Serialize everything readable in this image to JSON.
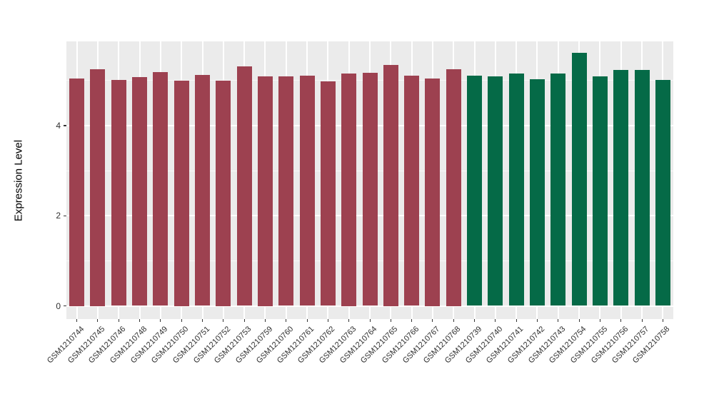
{
  "figure": {
    "ylabel": "Expression Level",
    "panel_bg_color": "#EBEBEB",
    "grid_color": "#FFFFFF",
    "tick_text_color": "#303030",
    "group_colors": {
      "group1": "#9D4150",
      "group2": "#056A47"
    }
  },
  "chart_data": {
    "type": "bar",
    "title": "",
    "xlabel": "",
    "ylabel": "Expression Level",
    "ylim": [
      0,
      5.87
    ],
    "yticks_major": [
      0,
      2,
      4
    ],
    "yticks_minor": [
      1,
      3,
      5
    ],
    "grid": true,
    "legend_position": "none",
    "categories": [
      "GSM1210744",
      "GSM1210745",
      "GSM1210746",
      "GSM1210748",
      "GSM1210749",
      "GSM1210750",
      "GSM1210751",
      "GSM1210752",
      "GSM1210753",
      "GSM1210759",
      "GSM1210760",
      "GSM1210761",
      "GSM1210762",
      "GSM1210763",
      "GSM1210764",
      "GSM1210765",
      "GSM1210766",
      "GSM1210767",
      "GSM1210768",
      "GSM1210739",
      "GSM1210740",
      "GSM1210741",
      "GSM1210742",
      "GSM1210743",
      "GSM1210754",
      "GSM1210755",
      "GSM1210756",
      "GSM1210757",
      "GSM1210758"
    ],
    "values": [
      5.05,
      5.25,
      5.02,
      5.08,
      5.19,
      5.0,
      5.13,
      5.0,
      5.32,
      5.1,
      5.09,
      5.11,
      4.98,
      5.15,
      5.17,
      5.35,
      5.11,
      5.05,
      5.25,
      5.11,
      5.09,
      5.16,
      5.03,
      5.16,
      5.62,
      5.09,
      5.23,
      5.23,
      5.02
    ],
    "groups": [
      "group1",
      "group1",
      "group1",
      "group1",
      "group1",
      "group1",
      "group1",
      "group1",
      "group1",
      "group1",
      "group1",
      "group1",
      "group1",
      "group1",
      "group1",
      "group1",
      "group1",
      "group1",
      "group1",
      "group2",
      "group2",
      "group2",
      "group2",
      "group2",
      "group2",
      "group2",
      "group2",
      "group2",
      "group2"
    ]
  }
}
